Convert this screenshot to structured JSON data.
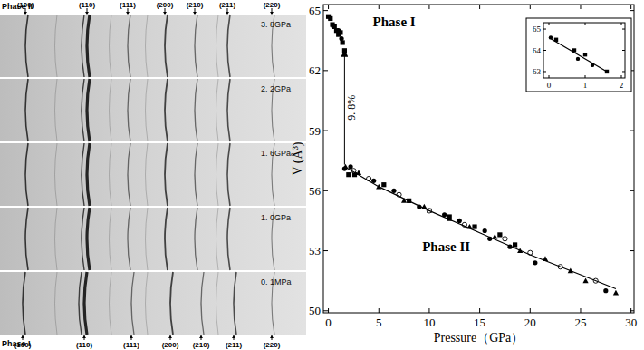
{
  "diffraction_panel": {
    "top_label": "Phase II",
    "bottom_label": "Phase I",
    "top_reflections": [
      "(100)",
      "(110)",
      "(111)",
      "(200)",
      "(210)",
      "(211)",
      "(220)"
    ],
    "bottom_reflections": [
      "(100)",
      "(110)",
      "(111)",
      "(200)",
      "(210)",
      "(211)",
      "(220)"
    ],
    "pressures": [
      "3. 8GPa",
      "2. 2GPa",
      "1. 6GPa",
      "1. 0GPa",
      "0. 1MPa"
    ]
  },
  "chart_data": [
    {
      "type": "scatter",
      "x_label": "Pressure（GPa）",
      "y_label": "V (Å³)",
      "xlim": [
        -0.5,
        30.3
      ],
      "ylim": [
        49.9,
        65.3
      ],
      "xticks": [
        0,
        5,
        10,
        15,
        20,
        25,
        30
      ],
      "yticks": [
        50,
        53,
        56,
        59,
        62,
        65
      ],
      "series": [
        {
          "marker": "square",
          "color": "#000000",
          "x": [
            0,
            0.2,
            0.4,
            0.6,
            0.8,
            1.0,
            1.2,
            1.4,
            1.6,
            2.0,
            2.6,
            5.5,
            8.0,
            10.0,
            12.0,
            14.5,
            17.0,
            18.5
          ],
          "values": [
            64.7,
            64.6,
            64.3,
            64.2,
            64.0,
            63.8,
            63.9,
            63.4,
            63.0,
            56.8,
            56.8,
            56.3,
            55.5,
            55.0,
            54.7,
            54.2,
            53.8,
            53.3
          ]
        },
        {
          "marker": "circle",
          "color": "#000000",
          "x": [
            0.5,
            1.0,
            1.3,
            1.6,
            2.2,
            4.5,
            6.5,
            9.0,
            11.5,
            13.0,
            15.5,
            16.0,
            18.0,
            20.5,
            27.5
          ],
          "values": [
            64.2,
            64.0,
            63.6,
            57.1,
            57.2,
            56.5,
            56.0,
            55.2,
            54.8,
            54.5,
            54.0,
            53.6,
            53.2,
            52.4,
            51.0
          ]
        },
        {
          "marker": "triangle",
          "color": "#000000",
          "x": [
            1.7,
            3.0,
            5.0,
            7.5,
            9.5,
            12.0,
            14.0,
            16.5,
            19.0,
            21.5,
            24.0,
            25.5,
            28.5
          ],
          "values": [
            57.2,
            56.9,
            56.2,
            55.5,
            55.2,
            54.6,
            54.2,
            53.7,
            53.0,
            52.6,
            52.0,
            51.5,
            50.9
          ]
        },
        {
          "marker": "open_circle",
          "color": "#000000",
          "x": [
            2.5,
            4.0,
            7.0,
            10.0,
            13.5,
            17.5,
            20.0,
            23.0,
            26.5
          ],
          "values": [
            57.0,
            56.6,
            55.8,
            55.0,
            54.3,
            53.6,
            52.9,
            52.2,
            51.5
          ]
        },
        {
          "type": "line",
          "marker": "none",
          "color": "#000000",
          "x": [
            1.6,
            5,
            10,
            15,
            20,
            25,
            28.5
          ],
          "values": [
            57.2,
            56.2,
            55.0,
            53.9,
            52.8,
            51.8,
            51.1
          ]
        }
      ],
      "annotations": [
        {
          "text": "Phase I",
          "x": 4.4,
          "y": 64.2
        },
        {
          "text": "Phase II",
          "x": 9.3,
          "y": 53.0
        },
        {
          "text": "9. 8%",
          "x": 1.6,
          "y": 57.3,
          "y_end": 63.0
        }
      ]
    },
    {
      "type": "scatter",
      "xlim": [
        -0.15,
        2.1
      ],
      "ylim": [
        62.7,
        65.3
      ],
      "xticks": [
        0,
        1,
        2
      ],
      "yticks": [
        63,
        64,
        65
      ],
      "series": [
        {
          "marker": "square",
          "color": "#000000",
          "x": [
            0.2,
            0.7,
            1.0,
            1.6
          ],
          "values": [
            64.5,
            64.0,
            63.8,
            63.0
          ]
        },
        {
          "marker": "circle",
          "color": "#000000",
          "x": [
            0.05,
            0.8,
            1.2
          ],
          "values": [
            64.6,
            63.6,
            63.3
          ]
        },
        {
          "type": "line",
          "marker": "none",
          "color": "#000000",
          "x": [
            0,
            1.6
          ],
          "values": [
            64.6,
            63.0
          ]
        }
      ]
    }
  ]
}
